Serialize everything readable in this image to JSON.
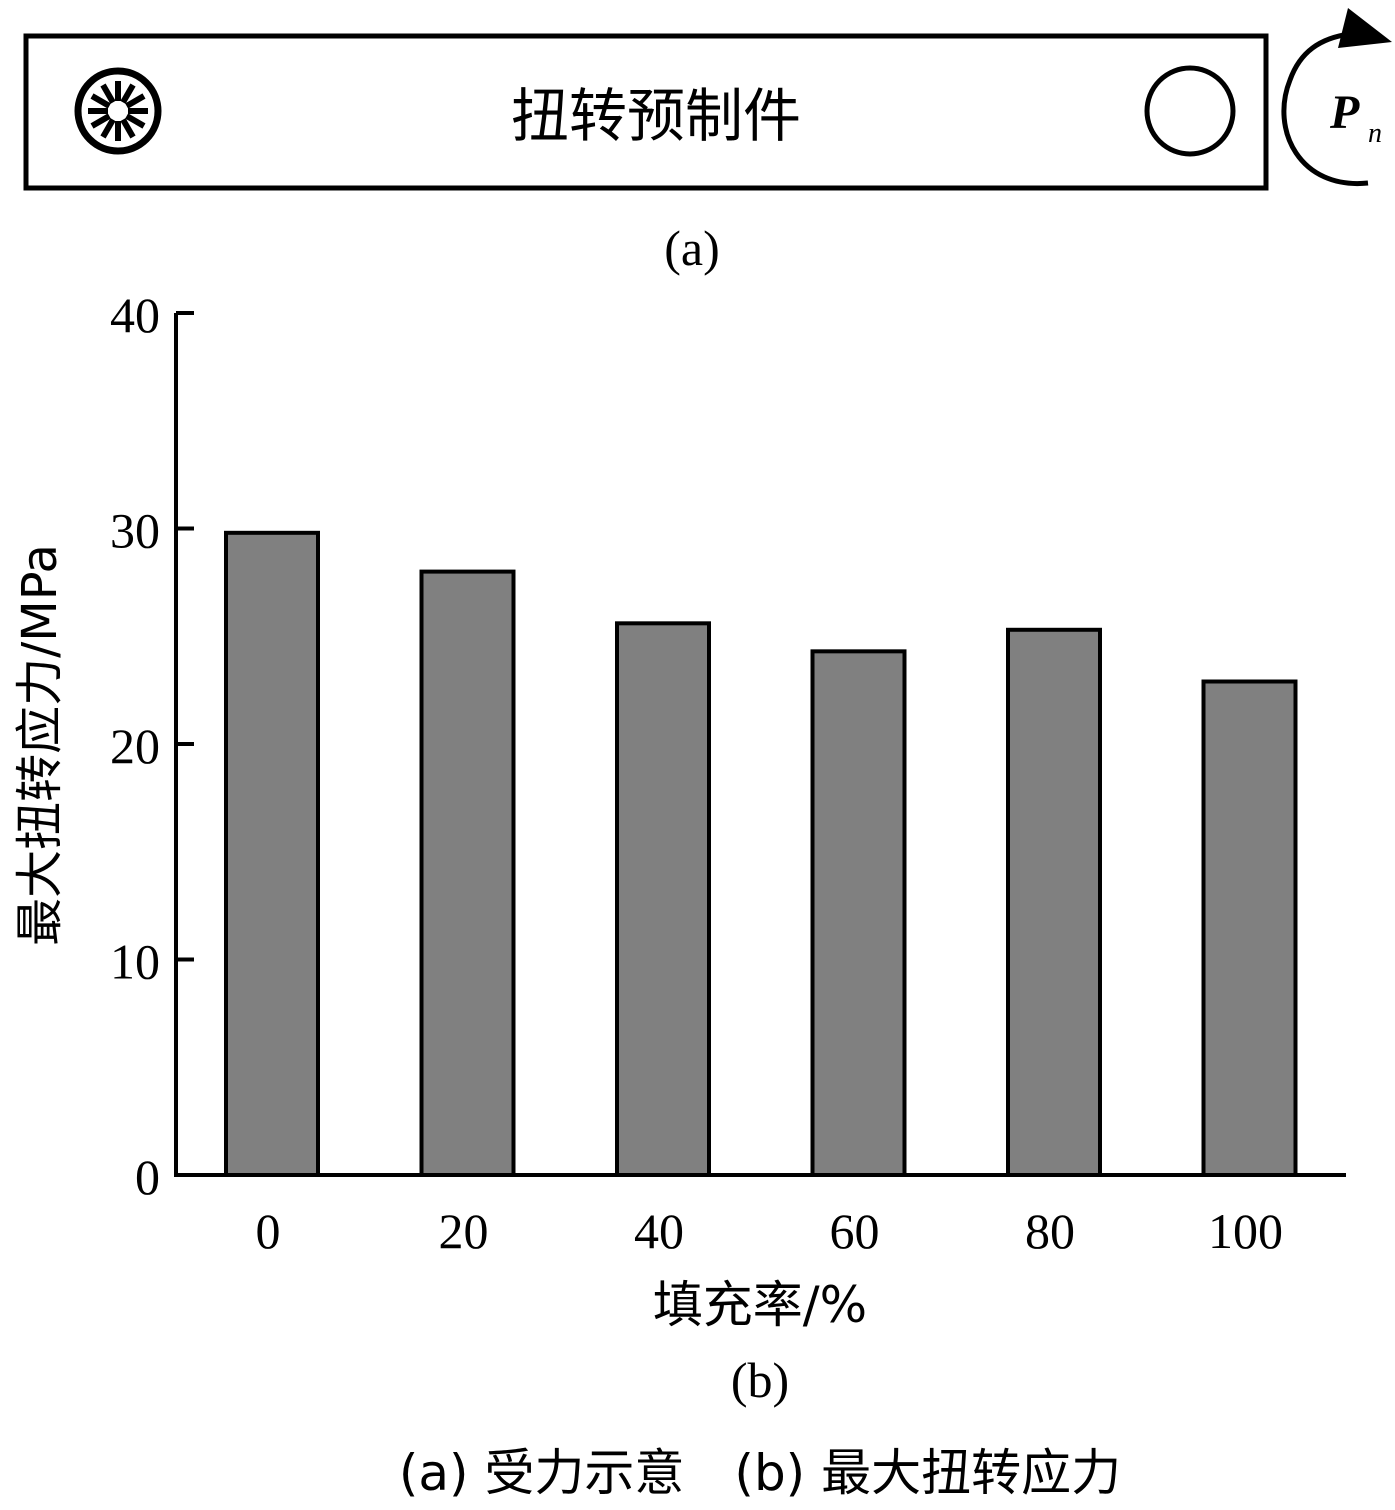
{
  "figure_a": {
    "specimen_label": "扭转预制件",
    "moment_symbol": "P",
    "moment_subscript": "n",
    "panel_label": "(a)"
  },
  "chart_data": {
    "type": "bar",
    "categories": [
      "0",
      "20",
      "40",
      "60",
      "80",
      "100"
    ],
    "values": [
      29.8,
      28.0,
      25.6,
      24.3,
      25.3,
      22.9
    ],
    "xlabel": "填充率/%",
    "ylabel": "最大扭转应力/MPa",
    "ylim": [
      0,
      40
    ],
    "yticks": [
      0,
      10,
      20,
      30,
      40
    ],
    "bar_color": "#808080",
    "grid": false,
    "panel_label": "(b)"
  },
  "caption": "(a) 受力示意　(b) 最大扭转应力"
}
